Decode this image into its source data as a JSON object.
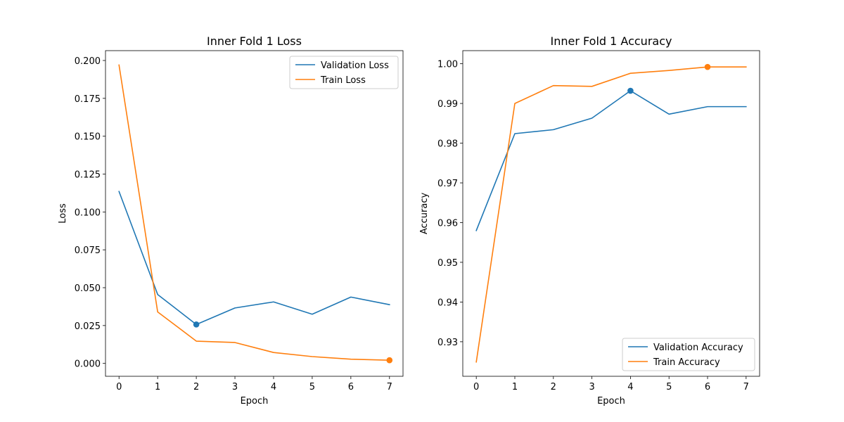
{
  "chart_data": [
    {
      "type": "line",
      "title": "Inner Fold 1 Loss",
      "xlabel": "Epoch",
      "ylabel": "Loss",
      "x": [
        0,
        1,
        2,
        3,
        4,
        5,
        6,
        7
      ],
      "xlim": [
        -0.35,
        7.35
      ],
      "ylim": [
        -0.0085,
        0.2065
      ],
      "xticks": [
        0,
        1,
        2,
        3,
        4,
        5,
        6,
        7
      ],
      "xtick_labels": [
        "0",
        "1",
        "2",
        "3",
        "4",
        "5",
        "6",
        "7"
      ],
      "yticks": [
        0.0,
        0.025,
        0.05,
        0.075,
        0.1,
        0.125,
        0.15,
        0.175,
        0.2
      ],
      "ytick_labels": [
        "0.000",
        "0.025",
        "0.050",
        "0.075",
        "0.100",
        "0.125",
        "0.150",
        "0.175",
        "0.200"
      ],
      "series": [
        {
          "name": "Validation Loss",
          "color": "#1f77b4",
          "values": [
            0.1135,
            0.0455,
            0.0257,
            0.0366,
            0.0406,
            0.0325,
            0.0438,
            0.0388
          ],
          "marker_index": 2
        },
        {
          "name": "Train Loss",
          "color": "#ff7f0e",
          "values": [
            0.197,
            0.034,
            0.0147,
            0.0138,
            0.0072,
            0.0045,
            0.0028,
            0.0021
          ],
          "marker_index": 7
        }
      ],
      "legend_position": "upper right",
      "grid": false
    },
    {
      "type": "line",
      "title": "Inner Fold 1 Accuracy",
      "xlabel": "Epoch",
      "ylabel": "Accuracy",
      "x": [
        0,
        1,
        2,
        3,
        4,
        5,
        6,
        7
      ],
      "xlim": [
        -0.35,
        7.35
      ],
      "ylim": [
        0.9213,
        1.0033
      ],
      "xticks": [
        0,
        1,
        2,
        3,
        4,
        5,
        6,
        7
      ],
      "xtick_labels": [
        "0",
        "1",
        "2",
        "3",
        "4",
        "5",
        "6",
        "7"
      ],
      "yticks": [
        0.93,
        0.94,
        0.95,
        0.96,
        0.97,
        0.98,
        0.99,
        1.0
      ],
      "ytick_labels": [
        "0.93",
        "0.94",
        "0.95",
        "0.96",
        "0.97",
        "0.98",
        "0.99",
        "1.00"
      ],
      "series": [
        {
          "name": "Validation Accuracy",
          "color": "#1f77b4",
          "values": [
            0.958,
            0.9824,
            0.9834,
            0.9863,
            0.9932,
            0.9873,
            0.9892,
            0.9892
          ],
          "marker_index": 4
        },
        {
          "name": "Train Accuracy",
          "color": "#ff7f0e",
          "values": [
            0.9249,
            0.99,
            0.9945,
            0.9943,
            0.9976,
            0.9983,
            0.9992,
            0.9992
          ],
          "marker_index": 6
        }
      ],
      "legend_position": "lower right",
      "grid": false
    }
  ]
}
